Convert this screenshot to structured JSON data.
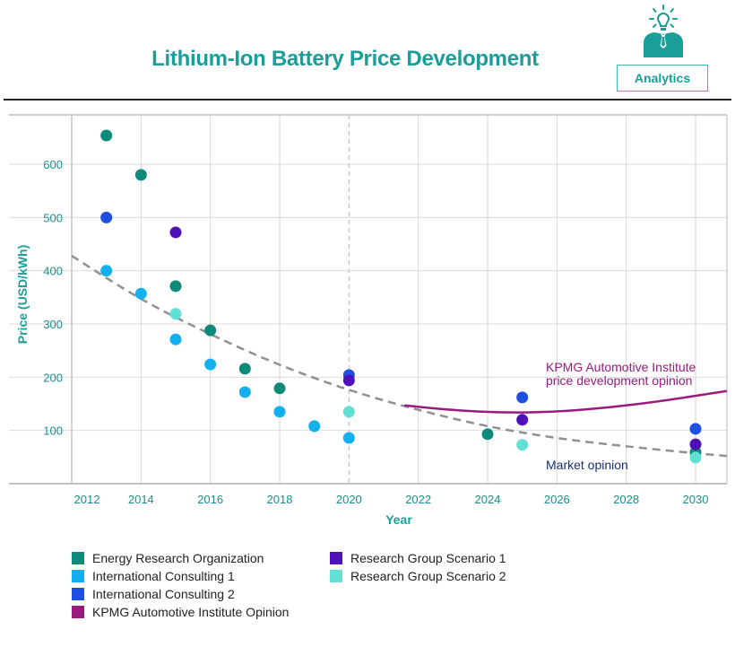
{
  "header": {
    "title": "Lithium-Ion Battery Price Development",
    "badge_label": "Analytics",
    "badge_icon": "lightbulb-person-icon",
    "accent": "#1a9e9a"
  },
  "chart_data": {
    "type": "scatter",
    "title": "Lithium-Ion Battery Price Development",
    "xlabel": "Year",
    "ylabel": "Price (USD/kWh)",
    "xlim": [
      2012,
      2030.9
    ],
    "ylim": [
      0,
      693
    ],
    "xticks": [
      2012,
      2014,
      2016,
      2018,
      2020,
      2022,
      2024,
      2026,
      2028,
      2030
    ],
    "yticks": [
      100,
      200,
      300,
      400,
      500,
      600
    ],
    "grid": true,
    "reference_year": 2020,
    "series": [
      {
        "name": "Energy Research Organization",
        "color": "#0e8a78",
        "points": [
          [
            2013,
            654
          ],
          [
            2014,
            580
          ],
          [
            2015,
            371
          ],
          [
            2016,
            288
          ],
          [
            2017,
            216
          ],
          [
            2018,
            179
          ],
          [
            2024,
            93
          ],
          [
            2030,
            59
          ]
        ]
      },
      {
        "name": "International Consulting 1",
        "color": "#12b0ef",
        "points": [
          [
            2013,
            400
          ],
          [
            2014,
            357
          ],
          [
            2015,
            271
          ],
          [
            2016,
            224
          ],
          [
            2017,
            172
          ],
          [
            2018,
            135
          ],
          [
            2019,
            108
          ],
          [
            2020,
            86
          ]
        ]
      },
      {
        "name": "International Consulting 2",
        "color": "#1e4fe0",
        "points": [
          [
            2013,
            500
          ],
          [
            2020,
            204
          ],
          [
            2025,
            162
          ],
          [
            2030,
            103
          ]
        ]
      },
      {
        "name": "Research Group Scenario 1",
        "color": "#5010b8",
        "points": [
          [
            2015,
            472
          ],
          [
            2020,
            194
          ],
          [
            2025,
            120
          ],
          [
            2030,
            74
          ]
        ]
      },
      {
        "name": "Research Group Scenario 2",
        "color": "#62e0d4",
        "points": [
          [
            2015,
            319
          ],
          [
            2020,
            135
          ],
          [
            2025,
            73
          ],
          [
            2030,
            49
          ]
        ]
      }
    ],
    "lines": [
      {
        "name": "Market opinion",
        "style": "dashed",
        "color": "#909090",
        "label": "Market opinion",
        "label_color": "#17306e",
        "points": [
          [
            2012,
            428
          ],
          [
            2014,
            345
          ],
          [
            2016,
            280
          ],
          [
            2018,
            222
          ],
          [
            2020,
            175
          ],
          [
            2022,
            138
          ],
          [
            2024,
            107
          ],
          [
            2026,
            85
          ],
          [
            2028,
            70
          ],
          [
            2030,
            57
          ],
          [
            2030.9,
            52
          ]
        ]
      },
      {
        "name": "KPMG Automotive Institute Opinion",
        "style": "solid",
        "color": "#9a1a80",
        "label": [
          "KPMG Automotive Institute",
          "price development opinion"
        ],
        "label_color": "#9a1a80",
        "points": [
          [
            2021.6,
            147
          ],
          [
            2023,
            138
          ],
          [
            2024.5,
            133
          ],
          [
            2026,
            135
          ],
          [
            2027.5,
            143
          ],
          [
            2029,
            155
          ],
          [
            2030.9,
            174
          ]
        ]
      }
    ],
    "legend": {
      "placement": "bottom-left",
      "columns": [
        [
          {
            "label": "Energy Research Organization",
            "color": "#0e8a78"
          },
          {
            "label": "International Consulting 1",
            "color": "#12b0ef"
          },
          {
            "label": "International Consulting 2",
            "color": "#1e4fe0"
          },
          {
            "label": "KPMG Automotive Institute Opinion",
            "color": "#9a1a80"
          }
        ],
        [
          {
            "label": "Research Group Scenario 1",
            "color": "#5010b8"
          },
          {
            "label": "Research Group Scenario 2",
            "color": "#62e0d4"
          }
        ]
      ]
    }
  }
}
